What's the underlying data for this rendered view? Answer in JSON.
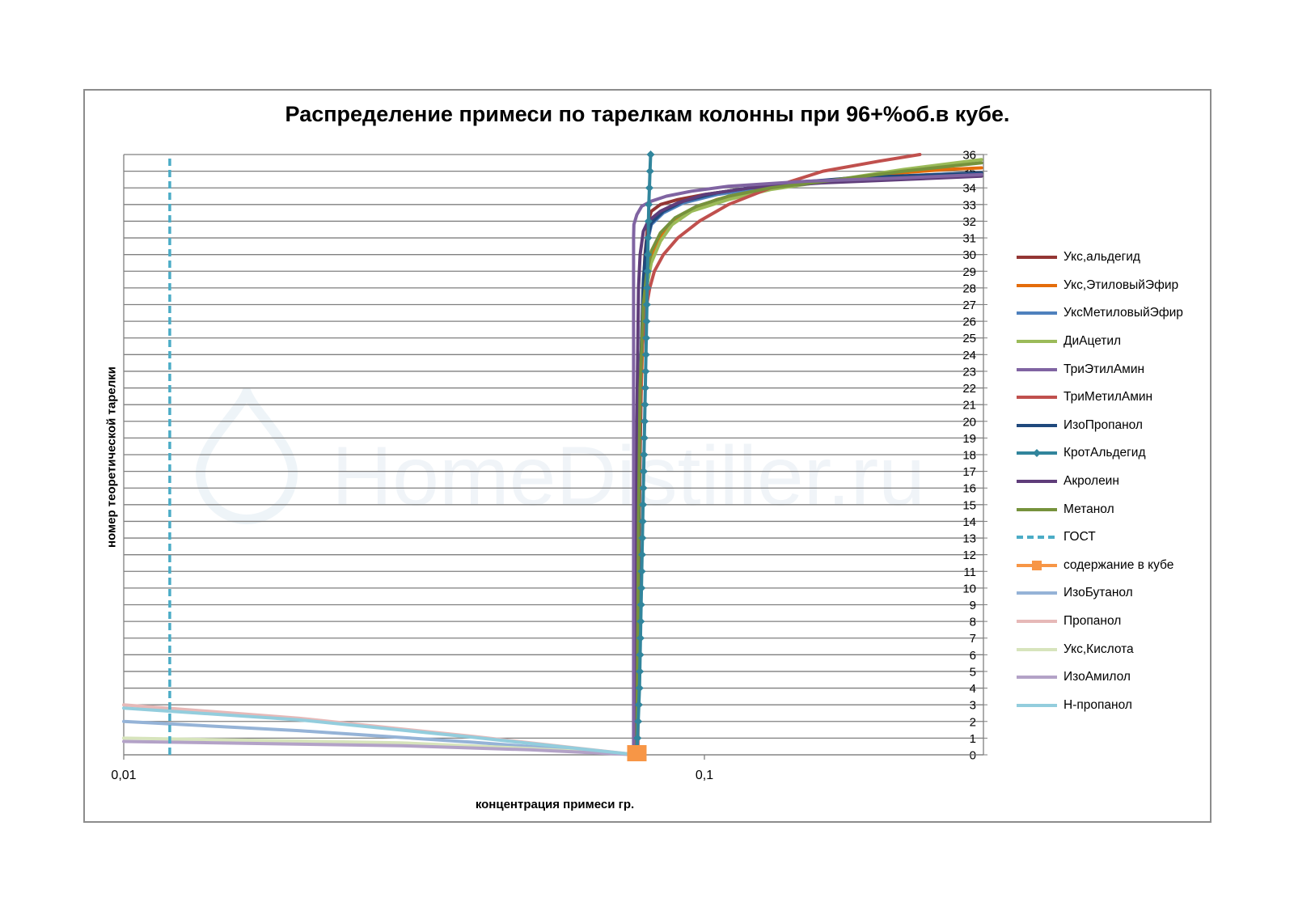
{
  "chart_data": {
    "type": "line",
    "title": "Распределение примеси по тарелкам колонны при 96+%об.в кубе.",
    "xlabel": "концентрация примеси гр.",
    "ylabel": "номер теоретической тарелки",
    "x_scale": "log",
    "xlim": [
      0.01,
      0.3
    ],
    "ylim": [
      0,
      36
    ],
    "x_ticks": [
      0.01,
      0.1
    ],
    "x_tick_labels": [
      "0,01",
      "0,1"
    ],
    "y_ticks": [
      0,
      1,
      2,
      3,
      4,
      5,
      6,
      7,
      8,
      9,
      10,
      11,
      12,
      13,
      14,
      15,
      16,
      17,
      18,
      19,
      20,
      21,
      22,
      23,
      24,
      25,
      26,
      27,
      28,
      29,
      30,
      31,
      32,
      33,
      34,
      35,
      36
    ],
    "grid": "horizontal",
    "legend_position": "right",
    "series": [
      {
        "name": "Укс,альдегид",
        "color": "#943634",
        "width": 4,
        "style": "solid",
        "points": [
          [
            0.0765,
            0
          ],
          [
            0.0768,
            6
          ],
          [
            0.0771,
            12
          ],
          [
            0.0775,
            18
          ],
          [
            0.078,
            24
          ],
          [
            0.0785,
            28
          ],
          [
            0.079,
            30
          ],
          [
            0.0795,
            31
          ],
          [
            0.08,
            32
          ],
          [
            0.081,
            32.6
          ],
          [
            0.084,
            33
          ],
          [
            0.09,
            33.3
          ],
          [
            0.1,
            33.6
          ],
          [
            0.12,
            34
          ],
          [
            0.16,
            34.4
          ],
          [
            0.22,
            34.7
          ],
          [
            0.3,
            34.9
          ]
        ]
      },
      {
        "name": "Укс,ЭтиловыйЭфир",
        "color": "#e46c0a",
        "width": 4,
        "style": "solid",
        "points": [
          [
            0.0765,
            0
          ],
          [
            0.077,
            10
          ],
          [
            0.0775,
            20
          ],
          [
            0.0785,
            26
          ],
          [
            0.0795,
            28
          ],
          [
            0.081,
            29.8
          ],
          [
            0.084,
            31
          ],
          [
            0.088,
            32
          ],
          [
            0.095,
            32.7
          ],
          [
            0.105,
            33.3
          ],
          [
            0.12,
            33.8
          ],
          [
            0.15,
            34.3
          ],
          [
            0.2,
            34.8
          ],
          [
            0.26,
            35.1
          ],
          [
            0.3,
            35.2
          ]
        ]
      },
      {
        "name": "УксМетиловыйЭфир",
        "color": "#4f81bd",
        "width": 4,
        "style": "solid",
        "points": [
          [
            0.0765,
            0
          ],
          [
            0.077,
            12
          ],
          [
            0.0775,
            22
          ],
          [
            0.0785,
            28
          ],
          [
            0.0795,
            30.5
          ],
          [
            0.081,
            31.8
          ],
          [
            0.085,
            32.5
          ],
          [
            0.092,
            33.1
          ],
          [
            0.105,
            33.6
          ],
          [
            0.13,
            34.1
          ],
          [
            0.18,
            34.5
          ],
          [
            0.25,
            34.8
          ],
          [
            0.3,
            34.9
          ]
        ]
      },
      {
        "name": "ДиАцетил",
        "color": "#9bbb59",
        "width": 4,
        "style": "solid",
        "points": [
          [
            0.0765,
            0
          ],
          [
            0.077,
            14
          ],
          [
            0.0775,
            22
          ],
          [
            0.078,
            25
          ],
          [
            0.0785,
            26.6
          ],
          [
            0.0795,
            28
          ],
          [
            0.081,
            29.5
          ],
          [
            0.084,
            30.8
          ],
          [
            0.088,
            31.8
          ],
          [
            0.095,
            32.6
          ],
          [
            0.11,
            33.3
          ],
          [
            0.13,
            33.9
          ],
          [
            0.17,
            34.5
          ],
          [
            0.22,
            35.1
          ],
          [
            0.3,
            35.7
          ]
        ]
      },
      {
        "name": "ТриЭтилАмин",
        "color": "#8064a2",
        "width": 4,
        "style": "solid",
        "points": [
          [
            0.0755,
            0
          ],
          [
            0.0755,
            10
          ],
          [
            0.0755,
            20
          ],
          [
            0.0755,
            28
          ],
          [
            0.0755,
            31
          ],
          [
            0.0756,
            31.8
          ],
          [
            0.0765,
            32.4
          ],
          [
            0.078,
            32.9
          ],
          [
            0.081,
            33.2
          ],
          [
            0.086,
            33.5
          ],
          [
            0.095,
            33.8
          ],
          [
            0.11,
            34.1
          ],
          [
            0.15,
            34.4
          ],
          [
            0.22,
            34.6
          ],
          [
            0.3,
            34.8
          ]
        ]
      },
      {
        "name": "ТриМетилАмин",
        "color": "#c0504d",
        "width": 4,
        "style": "solid",
        "points": [
          [
            0.0768,
            0
          ],
          [
            0.077,
            10
          ],
          [
            0.0775,
            20
          ],
          [
            0.078,
            24
          ],
          [
            0.079,
            26.4
          ],
          [
            0.0805,
            28
          ],
          [
            0.082,
            29
          ],
          [
            0.085,
            30
          ],
          [
            0.09,
            31
          ],
          [
            0.098,
            32
          ],
          [
            0.11,
            33
          ],
          [
            0.13,
            34
          ],
          [
            0.16,
            35
          ],
          [
            0.2,
            35.6
          ],
          [
            0.235,
            36
          ]
        ]
      },
      {
        "name": "ИзоПропанол",
        "color": "#1f497d",
        "width": 4,
        "style": "solid",
        "points": [
          [
            0.0765,
            0
          ],
          [
            0.077,
            12
          ],
          [
            0.0775,
            22
          ],
          [
            0.0785,
            28.5
          ],
          [
            0.0795,
            30.8
          ],
          [
            0.081,
            31.9
          ],
          [
            0.085,
            32.6
          ],
          [
            0.092,
            33.2
          ],
          [
            0.105,
            33.7
          ],
          [
            0.13,
            34.2
          ],
          [
            0.18,
            34.6
          ],
          [
            0.25,
            34.8
          ],
          [
            0.3,
            34.9
          ]
        ]
      },
      {
        "name": "КротАльдегид",
        "color": "#31859c",
        "width": 4,
        "style": "marker",
        "points": [
          [
            0.0765,
            0
          ],
          [
            0.0767,
            1
          ],
          [
            0.0769,
            2
          ],
          [
            0.0771,
            3
          ],
          [
            0.0773,
            4
          ],
          [
            0.0774,
            5
          ],
          [
            0.0775,
            6
          ],
          [
            0.0776,
            7
          ],
          [
            0.0777,
            8
          ],
          [
            0.0778,
            9
          ],
          [
            0.0779,
            10
          ],
          [
            0.078,
            11
          ],
          [
            0.0781,
            12
          ],
          [
            0.0782,
            13
          ],
          [
            0.0783,
            14
          ],
          [
            0.0784,
            15
          ],
          [
            0.0785,
            16
          ],
          [
            0.0786,
            17
          ],
          [
            0.0787,
            18
          ],
          [
            0.0788,
            19
          ],
          [
            0.0789,
            20
          ],
          [
            0.079,
            21
          ],
          [
            0.0791,
            22
          ],
          [
            0.0792,
            23
          ],
          [
            0.0793,
            24
          ],
          [
            0.0794,
            25
          ],
          [
            0.0795,
            26
          ],
          [
            0.0796,
            27
          ],
          [
            0.0797,
            28
          ],
          [
            0.0798,
            29
          ],
          [
            0.0799,
            30
          ],
          [
            0.08,
            31
          ],
          [
            0.0801,
            32
          ],
          [
            0.0802,
            33
          ],
          [
            0.0804,
            34
          ],
          [
            0.0806,
            35
          ],
          [
            0.0808,
            36
          ]
        ]
      },
      {
        "name": "Акролеин",
        "color": "#5f3d7a",
        "width": 4,
        "style": "solid",
        "points": [
          [
            0.076,
            0
          ],
          [
            0.0762,
            10
          ],
          [
            0.0765,
            20
          ],
          [
            0.077,
            28
          ],
          [
            0.0775,
            30
          ],
          [
            0.0785,
            31.4
          ],
          [
            0.08,
            32
          ],
          [
            0.084,
            32.6
          ],
          [
            0.09,
            33.1
          ],
          [
            0.1,
            33.6
          ],
          [
            0.12,
            34
          ],
          [
            0.16,
            34.3
          ],
          [
            0.22,
            34.5
          ],
          [
            0.3,
            34.7
          ]
        ]
      },
      {
        "name": "Метанол",
        "color": "#76923c",
        "width": 4,
        "style": "solid",
        "points": [
          [
            0.0765,
            0
          ],
          [
            0.077,
            14
          ],
          [
            0.0775,
            22
          ],
          [
            0.0785,
            27
          ],
          [
            0.0795,
            28.8
          ],
          [
            0.081,
            30.2
          ],
          [
            0.084,
            31.3
          ],
          [
            0.089,
            32.2
          ],
          [
            0.097,
            32.9
          ],
          [
            0.11,
            33.5
          ],
          [
            0.13,
            34
          ],
          [
            0.17,
            34.5
          ],
          [
            0.22,
            35
          ],
          [
            0.3,
            35.5
          ]
        ]
      },
      {
        "name": "ГОСТ",
        "color": "#4bacc6",
        "width": 3.5,
        "style": "dashed",
        "points": [
          [
            0.012,
            0
          ],
          [
            0.012,
            36
          ]
        ]
      },
      {
        "name": "содержание в кубе",
        "color": "#f79646",
        "width": 4,
        "style": "square-marker",
        "points": [
          [
            0.0765,
            0
          ]
        ]
      },
      {
        "name": "ИзоБутанол",
        "color": "#95b3d7",
        "width": 4,
        "style": "solid",
        "points": [
          [
            0.01,
            2.0
          ],
          [
            0.02,
            1.45
          ],
          [
            0.04,
            0.75
          ],
          [
            0.0765,
            0
          ]
        ]
      },
      {
        "name": "Пропанол",
        "color": "#e6b9b8",
        "width": 4,
        "style": "solid",
        "points": [
          [
            0.01,
            3.0
          ],
          [
            0.02,
            2.2
          ],
          [
            0.04,
            1.1
          ],
          [
            0.0765,
            0
          ]
        ]
      },
      {
        "name": "Укс,Кислота",
        "color": "#d7e4bc",
        "width": 4,
        "style": "solid",
        "points": [
          [
            0.01,
            1.0
          ],
          [
            0.03,
            0.72
          ],
          [
            0.05,
            0.38
          ],
          [
            0.0765,
            0
          ]
        ]
      },
      {
        "name": "ИзоАмилол",
        "color": "#b3a2c7",
        "width": 4,
        "style": "solid",
        "points": [
          [
            0.01,
            0.8
          ],
          [
            0.03,
            0.55
          ],
          [
            0.05,
            0.3
          ],
          [
            0.0765,
            0
          ]
        ]
      },
      {
        "name": "Н-пропанол",
        "color": "#93cddd",
        "width": 4,
        "style": "solid",
        "points": [
          [
            0.01,
            2.8
          ],
          [
            0.02,
            2.1
          ],
          [
            0.04,
            1.05
          ],
          [
            0.0765,
            0
          ]
        ]
      }
    ]
  },
  "watermark": "HomeDistiller.ru"
}
